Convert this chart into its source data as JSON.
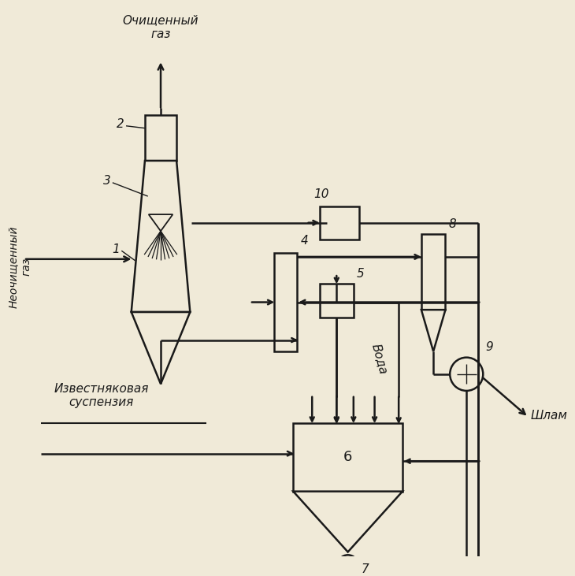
{
  "bg_color": "#f0ead8",
  "line_color": "#1a1a1a",
  "labels": {
    "cleaned_gas": "Очищенный\nгаз",
    "uncleaned_gas": "Неочищенный\nгаз",
    "limestone": "Известняковая\nсуспензия",
    "water": "Вода",
    "shlam": "Шлам"
  }
}
